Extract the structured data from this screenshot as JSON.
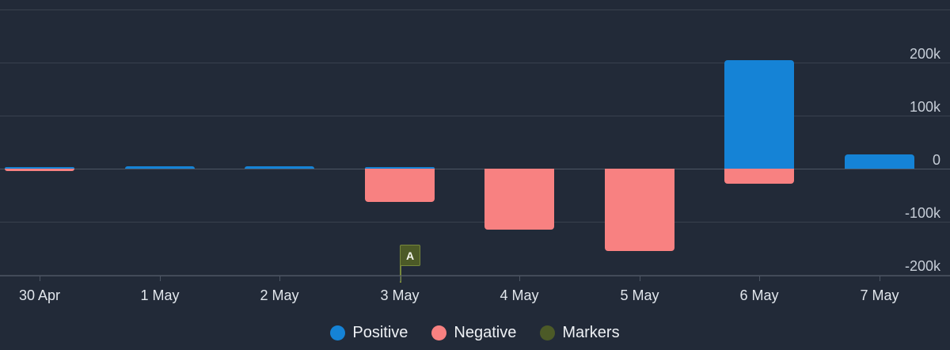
{
  "colors": {
    "background": "#222a38",
    "positive": "#1583d6",
    "negative": "#f88181",
    "marker_fill": "#4c5a27",
    "marker_border": "#76873c",
    "gridline": "#39414e",
    "zero_line": "#4d5664",
    "axis": "#4d5664",
    "x_label_text": "#e1e6ec",
    "y_label_text": "#c6cdd7",
    "legend_text": "#eef1f5"
  },
  "chart_data": {
    "type": "bar",
    "stacked": true,
    "grid": true,
    "legend_position": "bottom-center",
    "categories": [
      "30 Apr",
      "1 May",
      "2 May",
      "3 May",
      "4 May",
      "5 May",
      "6 May",
      "7 May"
    ],
    "series": [
      {
        "name": "Positive",
        "color_key": "positive",
        "values": [
          3000,
          4000,
          4000,
          3000,
          0,
          0,
          205000,
          27000
        ]
      },
      {
        "name": "Negative",
        "color_key": "negative",
        "values": [
          -4000,
          0,
          0,
          -63000,
          -115000,
          -155000,
          -28000,
          0
        ]
      }
    ],
    "y_axis": {
      "side": "right",
      "range": [
        -200000,
        300000
      ],
      "ticks": [
        {
          "value": 300000,
          "label": ""
        },
        {
          "value": 200000,
          "label": "200k"
        },
        {
          "value": 100000,
          "label": "100k"
        },
        {
          "value": 0,
          "label": "0"
        },
        {
          "value": -100000,
          "label": "-100k"
        },
        {
          "value": -200000,
          "label": "-200k"
        }
      ]
    },
    "markers": [
      {
        "label": "A",
        "category": "3 May",
        "series_name": "Markers"
      }
    ],
    "legend": [
      {
        "label": "Positive",
        "color_key": "positive"
      },
      {
        "label": "Negative",
        "color_key": "negative"
      },
      {
        "label": "Markers",
        "color_key": "marker_fill"
      }
    ]
  }
}
